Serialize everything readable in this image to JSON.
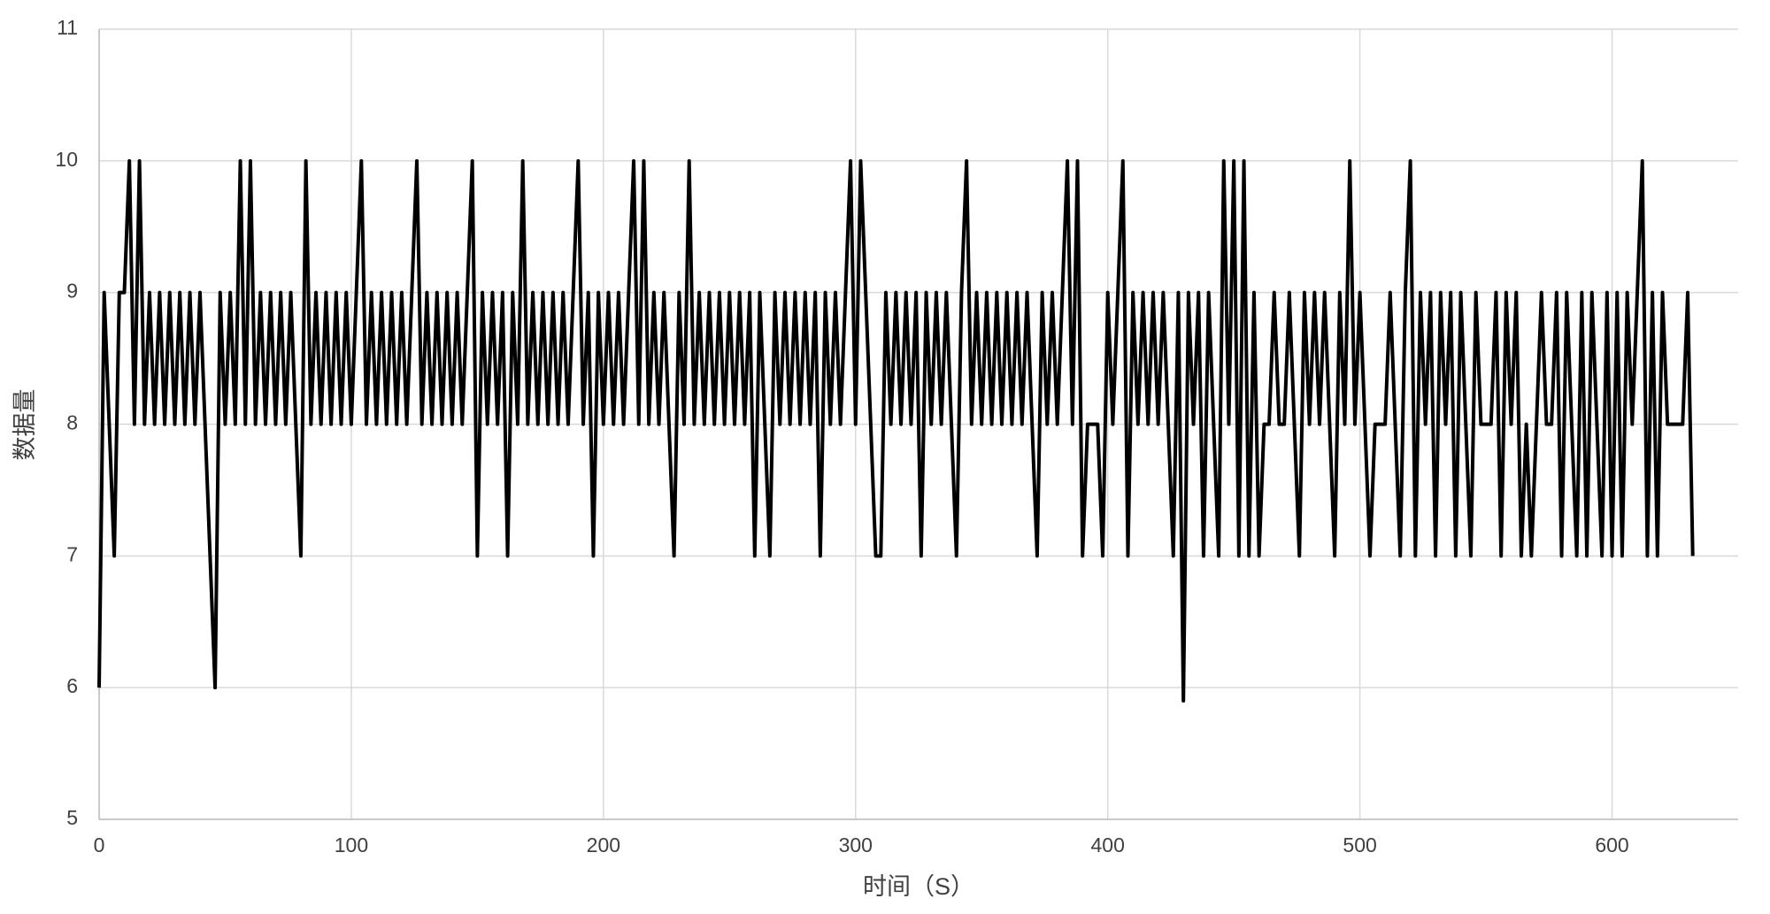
{
  "chart_data": {
    "type": "line",
    "x_label": "时间（S）",
    "y_label": "数据量",
    "xlim": [
      0,
      650
    ],
    "xticks": [
      0,
      100,
      200,
      300,
      400,
      500,
      600
    ],
    "ylim": [
      5,
      11
    ],
    "yticks": [
      5,
      6,
      7,
      8,
      9,
      10,
      11
    ],
    "grid": true,
    "x": [
      0,
      2,
      4,
      6,
      8,
      10,
      12,
      14,
      16,
      18,
      20,
      22,
      24,
      26,
      28,
      30,
      32,
      34,
      36,
      38,
      40,
      42,
      44,
      46,
      48,
      50,
      52,
      54,
      56,
      58,
      60,
      62,
      64,
      66,
      68,
      70,
      72,
      74,
      76,
      78,
      80,
      82,
      84,
      86,
      88,
      90,
      92,
      94,
      96,
      98,
      100,
      102,
      104,
      106,
      108,
      110,
      112,
      114,
      116,
      118,
      120,
      122,
      124,
      126,
      128,
      130,
      132,
      134,
      136,
      138,
      140,
      142,
      144,
      146,
      148,
      150,
      152,
      154,
      156,
      158,
      160,
      162,
      164,
      166,
      168,
      170,
      172,
      174,
      176,
      178,
      180,
      182,
      184,
      186,
      188,
      190,
      192,
      194,
      196,
      198,
      200,
      202,
      204,
      206,
      208,
      210,
      212,
      214,
      216,
      218,
      220,
      222,
      224,
      226,
      228,
      230,
      232,
      234,
      236,
      238,
      240,
      242,
      244,
      246,
      248,
      250,
      252,
      254,
      256,
      258,
      260,
      262,
      264,
      266,
      268,
      270,
      272,
      274,
      276,
      278,
      280,
      282,
      284,
      286,
      288,
      290,
      292,
      294,
      296,
      298,
      300,
      302,
      304,
      306,
      308,
      310,
      312,
      314,
      316,
      318,
      320,
      322,
      324,
      326,
      328,
      330,
      332,
      334,
      336,
      338,
      340,
      342,
      344,
      346,
      348,
      350,
      352,
      354,
      356,
      358,
      360,
      362,
      364,
      366,
      368,
      370,
      372,
      374,
      376,
      378,
      380,
      382,
      384,
      386,
      388,
      390,
      392,
      394,
      396,
      398,
      400,
      402,
      404,
      406,
      408,
      410,
      412,
      414,
      416,
      418,
      420,
      422,
      424,
      426,
      428,
      430,
      432,
      434,
      436,
      438,
      440,
      442,
      444,
      446,
      448,
      450,
      452,
      454,
      456,
      458,
      460,
      462,
      464,
      466,
      468,
      470,
      472,
      474,
      476,
      478,
      480,
      482,
      484,
      486,
      488,
      490,
      492,
      494,
      496,
      498,
      500,
      502,
      504,
      506,
      508,
      510,
      512,
      514,
      516,
      518,
      520,
      522,
      524,
      526,
      528,
      530,
      532,
      534,
      536,
      538,
      540,
      542,
      544,
      546,
      548,
      550,
      552,
      554,
      556,
      558,
      560,
      562,
      564,
      566,
      568,
      570,
      572,
      574,
      576,
      578,
      580,
      582,
      584,
      586,
      588,
      590,
      592,
      594,
      596,
      598,
      600,
      602,
      604,
      606,
      608,
      610,
      612,
      614,
      616,
      618,
      620,
      622,
      624,
      626,
      628,
      630,
      632
    ],
    "series": [
      {
        "color": "#000000",
        "values": [
          6,
          9,
          8,
          7,
          9,
          9,
          10,
          8,
          10,
          8,
          9,
          8,
          9,
          8,
          9,
          8,
          9,
          8,
          9,
          8,
          9,
          8,
          7,
          6,
          9,
          8,
          9,
          8,
          10,
          8,
          10,
          8,
          9,
          8,
          9,
          8,
          9,
          8,
          9,
          8,
          7,
          10,
          8,
          9,
          8,
          9,
          8,
          9,
          8,
          9,
          8,
          9,
          10,
          8,
          9,
          8,
          9,
          8,
          9,
          8,
          9,
          8,
          9,
          10,
          8,
          9,
          8,
          9,
          8,
          9,
          8,
          9,
          8,
          9,
          10,
          7,
          9,
          8,
          9,
          8,
          9,
          7,
          9,
          8,
          10,
          8,
          9,
          8,
          9,
          8,
          9,
          8,
          9,
          8,
          9,
          10,
          8,
          9,
          7,
          9,
          8,
          9,
          8,
          9,
          8,
          9,
          10,
          8,
          10,
          8,
          9,
          8,
          9,
          8,
          7,
          9,
          8,
          10,
          8,
          9,
          8,
          9,
          8,
          9,
          8,
          9,
          8,
          9,
          8,
          9,
          7,
          9,
          8,
          7,
          9,
          8,
          9,
          8,
          9,
          8,
          9,
          8,
          9,
          7,
          9,
          8,
          9,
          8,
          9,
          10,
          8,
          10,
          9,
          8,
          7,
          7,
          9,
          8,
          9,
          8,
          9,
          8,
          9,
          7,
          9,
          8,
          9,
          8,
          9,
          8,
          7,
          9,
          10,
          8,
          9,
          8,
          9,
          8,
          9,
          8,
          9,
          8,
          9,
          8,
          9,
          8,
          7,
          9,
          8,
          9,
          8,
          9,
          10,
          8,
          10,
          7,
          8,
          8,
          8,
          7,
          9,
          8,
          9,
          10,
          7,
          9,
          8,
          9,
          8,
          9,
          8,
          9,
          8,
          7,
          9,
          5.9,
          9,
          8,
          9,
          7,
          9,
          8,
          7,
          10,
          8,
          10,
          7,
          10,
          7,
          9,
          7,
          8,
          8,
          9,
          8,
          8,
          9,
          8,
          7,
          9,
          8,
          9,
          8,
          9,
          8,
          7,
          9,
          8,
          10,
          8,
          9,
          8,
          7,
          8,
          8,
          8,
          9,
          8,
          7,
          9,
          10,
          7,
          9,
          8,
          9,
          7,
          9,
          8,
          9,
          7,
          9,
          8,
          7,
          9,
          8,
          8,
          8,
          9,
          7,
          9,
          8,
          9,
          7,
          8,
          7,
          8,
          9,
          8,
          8,
          9,
          7,
          9,
          8,
          7,
          9,
          7,
          9,
          8,
          7,
          9,
          7,
          9,
          7,
          9,
          8,
          9,
          10,
          7,
          9,
          7,
          9,
          8,
          8,
          8,
          8,
          9,
          7
        ]
      }
    ]
  }
}
